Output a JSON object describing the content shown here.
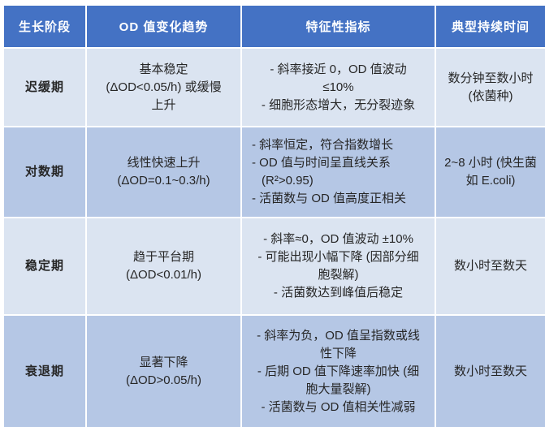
{
  "table": {
    "headers": [
      "生长阶段",
      "OD 值变化趋势",
      "特征性指标",
      "典型持续时间"
    ],
    "rows": [
      {
        "phase": "迟缓期",
        "trend_main": "基本稳定",
        "trend_detail": "(ΔOD<0.05/h) 或缓慢上升",
        "indicators": [
          "- 斜率接近 0，OD 值波动 ≤10%",
          "- 细胞形态增大，无分裂迹象"
        ],
        "duration": "数分钟至数小时 (依菌种)"
      },
      {
        "phase": "对数期",
        "trend_main": "线性快速上升",
        "trend_detail": "(ΔOD=0.1~0.3/h)",
        "indicators": [
          "- 斜率恒定，符合指数增长",
          "- OD 值与时间呈直线关系 (R²>0.95)",
          "- 活菌数与 OD 值高度正相关"
        ],
        "duration": "2~8 小时 (快生菌如 E.coli)"
      },
      {
        "phase": "稳定期",
        "trend_main": "趋于平台期",
        "trend_detail": "(ΔOD<0.01/h)",
        "indicators": [
          "- 斜率≈0，OD 值波动 ±10%",
          "- 可能出现小幅下降 (因部分细胞裂解)",
          "- 活菌数达到峰值后稳定"
        ],
        "duration": "数小时至数天"
      },
      {
        "phase": "衰退期",
        "trend_main": "显著下降",
        "trend_detail": "(ΔOD>0.05/h)",
        "indicators": [
          "- 斜率为负，OD 值呈指数或线性下降",
          "- 后期 OD 值下降速率加快 (细胞大量裂解)",
          "- 活菌数与 OD 值相关性减弱"
        ],
        "duration": "数小时至数天"
      }
    ]
  },
  "colors": {
    "header_bg": "#4472C4",
    "header_text": "#FFFFFF",
    "row_light": "#DBE4F1",
    "row_dark": "#B5C7E5",
    "body_text": "#262626",
    "border": "#FFFFFF"
  }
}
